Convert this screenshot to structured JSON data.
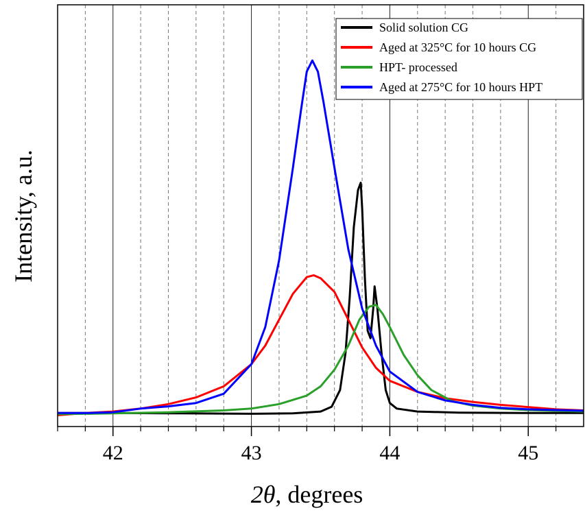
{
  "chart_data": {
    "type": "line",
    "xlabel_symbol": "2θ",
    "xlabel_rest": ", degrees",
    "ylabel": "Intensity, a.u.",
    "xlim": [
      41.6,
      45.4
    ],
    "ylim": [
      0,
      1
    ],
    "x_ticks": [
      "42",
      "43",
      "44",
      "45"
    ],
    "major_grid": [
      42,
      43,
      44,
      45
    ],
    "minor_grid": [
      41.8,
      42.2,
      42.4,
      42.6,
      42.8,
      43.2,
      43.4,
      43.6,
      43.8,
      44.2,
      44.4,
      44.6,
      44.8,
      45.2
    ],
    "legend_position": "top-right",
    "series": [
      {
        "name": "Solid solution CG",
        "color": "#000000",
        "points": [
          [
            41.6,
            0.018
          ],
          [
            42.0,
            0.018
          ],
          [
            42.5,
            0.017
          ],
          [
            43.0,
            0.016
          ],
          [
            43.3,
            0.017
          ],
          [
            43.5,
            0.022
          ],
          [
            43.58,
            0.035
          ],
          [
            43.64,
            0.08
          ],
          [
            43.68,
            0.18
          ],
          [
            43.71,
            0.33
          ],
          [
            43.74,
            0.52
          ],
          [
            43.77,
            0.62
          ],
          [
            43.79,
            0.64
          ],
          [
            43.8,
            0.57
          ],
          [
            43.82,
            0.38
          ],
          [
            43.84,
            0.24
          ],
          [
            43.86,
            0.22
          ],
          [
            43.88,
            0.3
          ],
          [
            43.89,
            0.36
          ],
          [
            43.91,
            0.3
          ],
          [
            43.94,
            0.18
          ],
          [
            43.97,
            0.08
          ],
          [
            44.0,
            0.045
          ],
          [
            44.05,
            0.03
          ],
          [
            44.2,
            0.022
          ],
          [
            44.5,
            0.019
          ],
          [
            45.0,
            0.018
          ],
          [
            45.4,
            0.018
          ]
        ]
      },
      {
        "name": "Aged at 325°C for 10 hours CG",
        "color": "#ff0000",
        "points": [
          [
            41.6,
            0.012
          ],
          [
            41.8,
            0.018
          ],
          [
            42.0,
            0.022
          ],
          [
            42.2,
            0.03
          ],
          [
            42.4,
            0.042
          ],
          [
            42.6,
            0.06
          ],
          [
            42.8,
            0.09
          ],
          [
            43.0,
            0.15
          ],
          [
            43.1,
            0.2
          ],
          [
            43.2,
            0.27
          ],
          [
            43.3,
            0.34
          ],
          [
            43.4,
            0.385
          ],
          [
            43.45,
            0.39
          ],
          [
            43.5,
            0.382
          ],
          [
            43.6,
            0.345
          ],
          [
            43.7,
            0.27
          ],
          [
            43.8,
            0.195
          ],
          [
            43.9,
            0.14
          ],
          [
            44.0,
            0.105
          ],
          [
            44.2,
            0.075
          ],
          [
            44.4,
            0.058
          ],
          [
            44.6,
            0.048
          ],
          [
            44.8,
            0.04
          ],
          [
            45.0,
            0.034
          ],
          [
            45.2,
            0.028
          ],
          [
            45.4,
            0.025
          ]
        ]
      },
      {
        "name": "HPT- processed",
        "color": "#2aa02a",
        "points": [
          [
            41.6,
            0.015
          ],
          [
            42.0,
            0.017
          ],
          [
            42.4,
            0.02
          ],
          [
            42.8,
            0.025
          ],
          [
            43.0,
            0.03
          ],
          [
            43.2,
            0.042
          ],
          [
            43.4,
            0.065
          ],
          [
            43.5,
            0.09
          ],
          [
            43.6,
            0.135
          ],
          [
            43.7,
            0.2
          ],
          [
            43.78,
            0.27
          ],
          [
            43.85,
            0.305
          ],
          [
            43.9,
            0.31
          ],
          [
            43.95,
            0.285
          ],
          [
            44.0,
            0.25
          ],
          [
            44.1,
            0.175
          ],
          [
            44.2,
            0.12
          ],
          [
            44.3,
            0.08
          ],
          [
            44.45,
            0.05
          ],
          [
            44.6,
            0.038
          ],
          [
            44.8,
            0.03
          ],
          [
            45.0,
            0.026
          ],
          [
            45.4,
            0.022
          ]
        ]
      },
      {
        "name": "Aged at 275°C for 10 hours HPT",
        "color": "#0000ff",
        "points": [
          [
            41.6,
            0.018
          ],
          [
            41.8,
            0.018
          ],
          [
            42.0,
            0.02
          ],
          [
            42.2,
            0.03
          ],
          [
            42.4,
            0.036
          ],
          [
            42.6,
            0.045
          ],
          [
            42.8,
            0.07
          ],
          [
            43.0,
            0.15
          ],
          [
            43.1,
            0.25
          ],
          [
            43.2,
            0.43
          ],
          [
            43.3,
            0.68
          ],
          [
            43.36,
            0.84
          ],
          [
            43.4,
            0.94
          ],
          [
            43.44,
            0.97
          ],
          [
            43.48,
            0.94
          ],
          [
            43.52,
            0.86
          ],
          [
            43.6,
            0.68
          ],
          [
            43.7,
            0.46
          ],
          [
            43.8,
            0.3
          ],
          [
            43.9,
            0.2
          ],
          [
            44.0,
            0.13
          ],
          [
            44.2,
            0.075
          ],
          [
            44.4,
            0.052
          ],
          [
            44.6,
            0.04
          ],
          [
            44.8,
            0.032
          ],
          [
            45.0,
            0.028
          ],
          [
            45.4,
            0.024
          ]
        ]
      }
    ]
  }
}
